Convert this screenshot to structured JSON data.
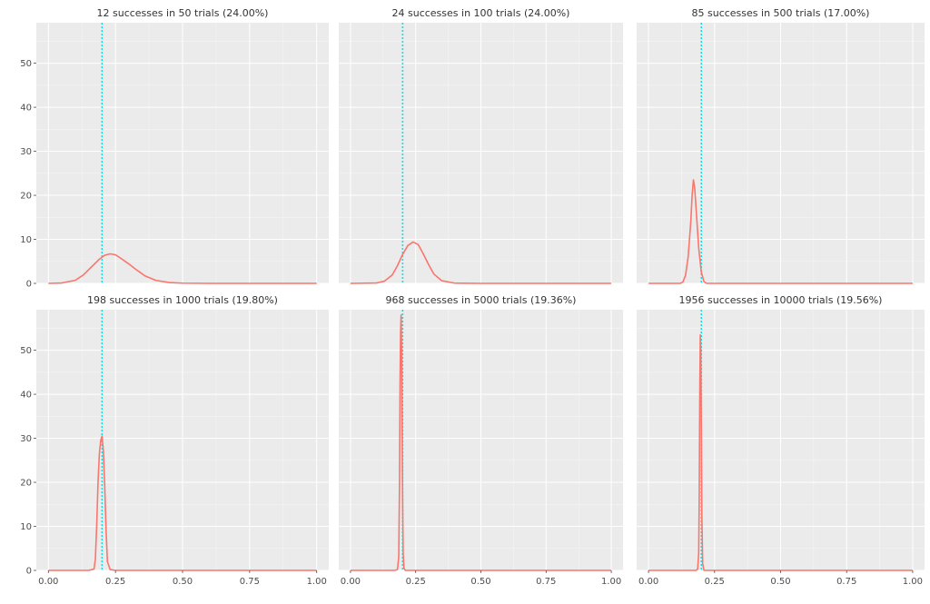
{
  "chart_data": {
    "type": "line",
    "layout": "facet-grid 2x3",
    "shared_y_axis": true,
    "grid": true,
    "legend": "none",
    "colors": {
      "density": "#f8766d",
      "reference": "#00e5ee",
      "panel_bg": "#ebebeb"
    },
    "xlim": [
      0,
      1
    ],
    "ylim": [
      0,
      58
    ],
    "x_ticks": [
      "0.00",
      "0.25",
      "0.50",
      "0.75",
      "1.00"
    ],
    "x_tick_values": [
      0,
      0.25,
      0.5,
      0.75,
      1
    ],
    "y_ticks": [
      "0",
      "10",
      "20",
      "30",
      "40",
      "50"
    ],
    "y_tick_values": [
      0,
      10,
      20,
      30,
      40,
      50
    ],
    "reference_x": 0.2,
    "panels": [
      {
        "title": "12 successes in 50 trials (24.00%)",
        "series": [
          {
            "x": [
              0.0,
              0.05,
              0.1,
              0.13,
              0.16,
              0.19,
              0.21,
              0.23,
              0.25,
              0.27,
              0.3,
              0.33,
              0.36,
              0.4,
              0.45,
              0.5,
              0.6,
              0.8,
              1.0
            ],
            "y": [
              0,
              0.1,
              0.7,
              1.9,
              3.7,
              5.5,
              6.4,
              6.7,
              6.5,
              5.7,
              4.4,
              3.0,
              1.7,
              0.7,
              0.2,
              0.05,
              0,
              0,
              0
            ]
          }
        ]
      },
      {
        "title": "24 successes in 100 trials (24.00%)",
        "series": [
          {
            "x": [
              0.0,
              0.1,
              0.13,
              0.16,
              0.18,
              0.2,
              0.22,
              0.24,
              0.26,
              0.28,
              0.3,
              0.32,
              0.35,
              0.4,
              0.5,
              0.75,
              1.0
            ],
            "y": [
              0,
              0.1,
              0.5,
              1.9,
              4.0,
              6.6,
              8.6,
              9.4,
              8.8,
              6.6,
              4.2,
              2.1,
              0.6,
              0.05,
              0,
              0,
              0
            ]
          }
        ]
      },
      {
        "title": "85 successes in 500 trials (17.00%)",
        "series": [
          {
            "x": [
              0.0,
              0.12,
              0.13,
              0.14,
              0.15,
              0.16,
              0.165,
              0.17,
              0.175,
              0.18,
              0.19,
              0.2,
              0.21,
              0.22,
              0.25,
              0.5,
              1.0
            ],
            "y": [
              0,
              0,
              0.3,
              1.8,
              6.0,
              14.0,
              20.0,
              23.5,
              21.5,
              17.0,
              8.0,
              2.5,
              0.4,
              0,
              0,
              0,
              0
            ]
          }
        ]
      },
      {
        "title": "198 successes in 1000 trials (19.80%)",
        "series": [
          {
            "x": [
              0.0,
              0.15,
              0.17,
              0.175,
              0.18,
              0.185,
              0.19,
              0.195,
              0.2,
              0.205,
              0.21,
              0.215,
              0.22,
              0.23,
              0.25,
              0.5,
              1.0
            ],
            "y": [
              0,
              0,
              0.3,
              2.5,
              10.0,
              20.0,
              26.5,
              29.5,
              30.5,
              27.0,
              19.0,
              9.0,
              2.0,
              0.2,
              0,
              0,
              0
            ]
          }
        ]
      },
      {
        "title": "968 successes in 5000 trials (19.36%)",
        "series": [
          {
            "x": [
              0.0,
              0.17,
              0.18,
              0.185,
              0.188,
              0.19,
              0.192,
              0.194,
              0.196,
              0.198,
              0.2,
              0.202,
              0.205,
              0.21,
              0.25,
              0.5,
              1.0
            ],
            "y": [
              0,
              0,
              0.2,
              3.0,
              20.0,
              42.0,
              54.0,
              58.0,
              50.0,
              34.0,
              15.0,
              4.0,
              0.5,
              0,
              0,
              0,
              0
            ]
          }
        ]
      },
      {
        "title": "1956 successes in 10000 trials (19.56%)",
        "series": [
          {
            "x": [
              0.0,
              0.18,
              0.186,
              0.19,
              0.192,
              0.194,
              0.196,
              0.198,
              0.2,
              0.202,
              0.205,
              0.21,
              0.25,
              0.5,
              1.0
            ],
            "y": [
              0,
              0,
              0.3,
              4.0,
              17.0,
              40.0,
              53.5,
              50.0,
              32.0,
              12.0,
              1.5,
              0,
              0,
              0,
              0
            ]
          }
        ]
      }
    ]
  }
}
